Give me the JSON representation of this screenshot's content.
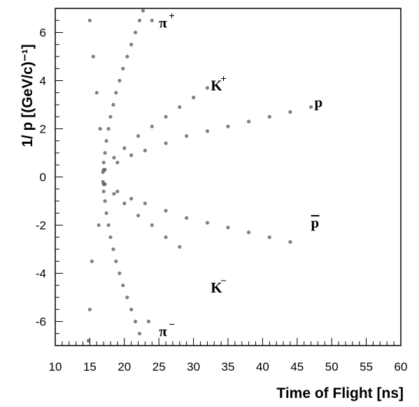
{
  "chart_data": {
    "type": "scatter",
    "title": "",
    "xlabel": "Time of Flight [ns]",
    "ylabel": "1/ p [(GeV/c)⁻¹]",
    "xlim": [
      10,
      60
    ],
    "ylim": [
      -7,
      7
    ],
    "x_ticks": [
      10,
      15,
      20,
      25,
      30,
      35,
      40,
      45,
      50,
      55,
      60
    ],
    "x_tick_labels": [
      "10",
      "15",
      "20",
      "25",
      "30",
      "35",
      "40",
      "45",
      "50",
      "55",
      "60"
    ],
    "y_ticks": [
      -6,
      -4,
      -2,
      0,
      2,
      4,
      6
    ],
    "y_tick_labels": [
      "-6",
      "-4",
      "-2",
      "0",
      "2",
      "4",
      "6"
    ],
    "grid": false,
    "marker_color": "#555555",
    "series": [
      {
        "points": [
          [
            16.9,
            0.2
          ],
          [
            17.0,
            0.6
          ],
          [
            17.2,
            1.0
          ],
          [
            17.4,
            1.5
          ],
          [
            17.7,
            2.0
          ],
          [
            18.0,
            2.5
          ],
          [
            18.4,
            3.0
          ],
          [
            18.8,
            3.5
          ],
          [
            19.3,
            4.0
          ],
          [
            19.8,
            4.5
          ],
          [
            20.4,
            5.0
          ],
          [
            21.0,
            5.5
          ],
          [
            21.6,
            6.0
          ],
          [
            22.2,
            6.5
          ],
          [
            22.7,
            6.9
          ]
        ]
      },
      {
        "points": [
          [
            16.9,
            -0.2
          ],
          [
            17.0,
            -0.6
          ],
          [
            17.2,
            -1.0
          ],
          [
            17.4,
            -1.5
          ],
          [
            17.7,
            -2.0
          ],
          [
            18.0,
            -2.5
          ],
          [
            18.4,
            -3.0
          ],
          [
            18.8,
            -3.5
          ],
          [
            19.3,
            -4.0
          ],
          [
            19.8,
            -4.5
          ],
          [
            20.4,
            -5.0
          ],
          [
            21.0,
            -5.5
          ],
          [
            21.6,
            -6.0
          ],
          [
            22.2,
            -6.5
          ]
        ]
      },
      {
        "points": [
          [
            17.0,
            0.3
          ],
          [
            18.5,
            0.8
          ],
          [
            20.0,
            1.2
          ],
          [
            22.0,
            1.7
          ],
          [
            24.0,
            2.1
          ],
          [
            26.0,
            2.5
          ],
          [
            28.0,
            2.9
          ],
          [
            30.0,
            3.3
          ],
          [
            32.0,
            3.7
          ]
        ]
      },
      {
        "points": [
          [
            17.0,
            -0.3
          ],
          [
            18.5,
            -0.7
          ],
          [
            20.0,
            -1.1
          ],
          [
            22.0,
            -1.6
          ],
          [
            24.0,
            -2.0
          ],
          [
            26.0,
            -2.5
          ],
          [
            28.0,
            -2.9
          ]
        ]
      },
      {
        "points": [
          [
            17.2,
            0.3
          ],
          [
            19.0,
            0.6
          ],
          [
            21.0,
            0.9
          ],
          [
            23.0,
            1.1
          ],
          [
            26.0,
            1.4
          ],
          [
            29.0,
            1.7
          ],
          [
            32.0,
            1.9
          ],
          [
            35.0,
            2.1
          ],
          [
            38.0,
            2.3
          ],
          [
            41.0,
            2.5
          ],
          [
            44.0,
            2.7
          ],
          [
            47.0,
            2.9
          ]
        ]
      },
      {
        "points": [
          [
            17.2,
            -0.3
          ],
          [
            19.0,
            -0.6
          ],
          [
            21.0,
            -0.9
          ],
          [
            23.0,
            -1.1
          ],
          [
            26.0,
            -1.4
          ],
          [
            29.0,
            -1.7
          ],
          [
            32.0,
            -1.9
          ],
          [
            35.0,
            -2.1
          ],
          [
            38.0,
            -2.3
          ],
          [
            41.0,
            -2.5
          ],
          [
            44.0,
            -2.7
          ]
        ]
      },
      {
        "points": [
          [
            15.0,
            6.5
          ],
          [
            15.5,
            5.0
          ],
          [
            16.0,
            3.5
          ],
          [
            15.3,
            -3.5
          ],
          [
            15.0,
            -5.5
          ],
          [
            14.8,
            -6.8
          ],
          [
            16.5,
            2.0
          ],
          [
            16.3,
            -2.0
          ],
          [
            24.0,
            6.5
          ],
          [
            23.5,
            -6.0
          ]
        ]
      }
    ],
    "annotations": [
      {
        "text": "π",
        "sup": "+",
        "x": 25.0,
        "y": 6.4
      },
      {
        "text": "K",
        "sup": "+",
        "x": 32.5,
        "y": 3.8
      },
      {
        "text": "p",
        "sup": "",
        "x": 47.5,
        "y": 3.1
      },
      {
        "text": "p",
        "sup": "",
        "bar": true,
        "x": 47.0,
        "y": -1.9
      },
      {
        "text": "K",
        "sup": "−",
        "x": 32.5,
        "y": -4.6
      },
      {
        "text": "π",
        "sup": "−",
        "x": 25.0,
        "y": -6.4
      }
    ]
  }
}
